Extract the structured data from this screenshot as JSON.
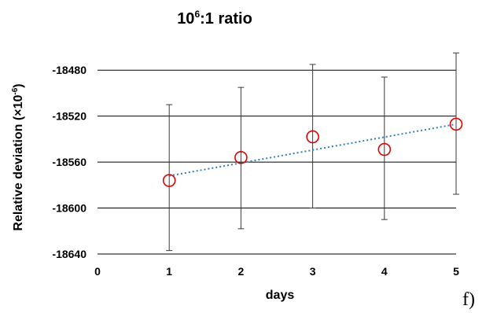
{
  "chart_data": {
    "type": "scatter",
    "title": "10",
    "title_sup": "6",
    "title_rest": ":1 ratio",
    "xlabel": "days",
    "ylabel_main": "Relative deviation (×10",
    "ylabel_sup": "-6",
    "ylabel_close": ")",
    "xlim": [
      0,
      5
    ],
    "ylim": [
      -18640,
      -18460
    ],
    "x_ticks": [
      0,
      1,
      2,
      3,
      4,
      5
    ],
    "y_ticks": [
      -18480,
      -18520,
      -18560,
      -18600,
      -18640
    ],
    "grid": "horizontal",
    "series": [
      {
        "marker": "open-circle",
        "color": "#e00000",
        "x": [
          1,
          2,
          3,
          4,
          5
        ],
        "y": [
          -18576,
          -18556,
          -18538,
          -18549,
          -18527
        ],
        "y_err_upper": [
          -18510,
          -18495,
          -18475,
          -18486,
          -18465
        ],
        "y_err_lower": [
          -18637,
          -18618,
          -18600,
          -18610,
          -18588
        ]
      }
    ],
    "trendline": {
      "style": "dotted",
      "color": "#2e7fc0",
      "x": [
        1,
        5
      ],
      "y": [
        -18572,
        -18527
      ]
    }
  },
  "panel_label": "f)"
}
